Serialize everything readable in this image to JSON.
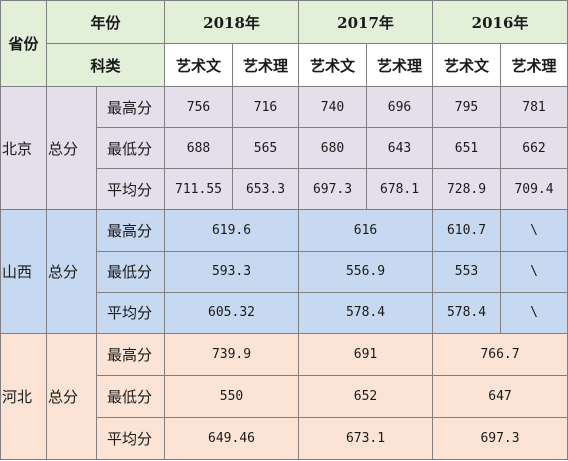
{
  "header": {
    "province": "省份",
    "year": "年份",
    "category": "科类",
    "years": [
      "2018年",
      "2017年",
      "2016年"
    ],
    "arts": "艺术文",
    "sci": "艺术理"
  },
  "beijing": {
    "province": "北京",
    "type": "总分",
    "rows": [
      {
        "label": "最高分",
        "values": [
          "756",
          "716",
          "740",
          "696",
          "795",
          "781"
        ]
      },
      {
        "label": "最低分",
        "values": [
          "688",
          "565",
          "680",
          "643",
          "651",
          "662"
        ]
      },
      {
        "label": "平均分",
        "values": [
          "711.55",
          "653.3",
          "697.3",
          "678.1",
          "728.9",
          "709.4"
        ]
      }
    ]
  },
  "shanxi": {
    "province": "山西",
    "type": "总分",
    "rows": [
      {
        "label": "最高分",
        "values": [
          "619.6",
          "616",
          "610.7",
          "\\"
        ]
      },
      {
        "label": "最低分",
        "values": [
          "593.3",
          "556.9",
          "553",
          "\\"
        ]
      },
      {
        "label": "平均分",
        "values": [
          "605.32",
          "578.4",
          "578.4",
          "\\"
        ]
      }
    ]
  },
  "hebei": {
    "province": "河北",
    "type": "总分",
    "rows": [
      {
        "label": "最高分",
        "values": [
          "739.9",
          "691",
          "766.7"
        ]
      },
      {
        "label": "最低分",
        "values": [
          "550",
          "652",
          "647"
        ]
      },
      {
        "label": "平均分",
        "values": [
          "649.46",
          "673.1",
          "697.3"
        ]
      }
    ]
  },
  "colors": {
    "header": "#e2efd9",
    "beijing": "#e5dfec",
    "shanxi": "#c6d9f1",
    "hebei": "#fbe4d5",
    "border": "#7f7f7f"
  }
}
